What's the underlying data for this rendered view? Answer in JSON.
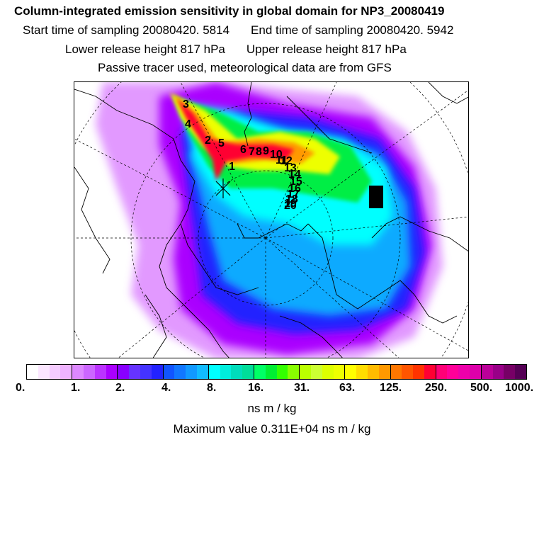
{
  "titles": {
    "main": "Column-integrated emission sensitivity in global domain for NP3_20080419",
    "start": "Start time of sampling 20080420.  5814",
    "end": "End time of sampling 20080420.  5942",
    "lower": "Lower release height  817 hPa",
    "upper": "Upper release height  817 hPa",
    "info": "Passive tracer used, meteorological data are from GFS"
  },
  "colorbar": {
    "ticks": [
      "0.",
      "1.",
      "2.",
      "4.",
      "8.",
      "16.",
      "31.",
      "63.",
      "125.",
      "250.",
      "500.",
      "1000."
    ],
    "unit": "ns m / kg",
    "colors": [
      "#ffffff",
      "#fbe6ff",
      "#f5ccff",
      "#efb3ff",
      "#dd88ff",
      "#cc66ff",
      "#bb33ff",
      "#aa00ff",
      "#8800ff",
      "#6633ff",
      "#4433ff",
      "#2222ff",
      "#1155ff",
      "#1177ff",
      "#1199ff",
      "#11bbff",
      "#00ffff",
      "#00eedd",
      "#00ddbb",
      "#00dd99",
      "#00ff66",
      "#00ee33",
      "#33ff00",
      "#88ff00",
      "#bbff00",
      "#ccff33",
      "#ddff00",
      "#eeff00",
      "#ffff00",
      "#ffdd00",
      "#ffbb00",
      "#ff9900",
      "#ff7700",
      "#ff5500",
      "#ff3300",
      "#ff0033",
      "#ff0077",
      "#ff0099",
      "#ee00aa",
      "#dd00aa",
      "#bb0099",
      "#990088",
      "#770066",
      "#550055"
    ]
  },
  "max_value": "Maximum value  0.311E+04 ns m / kg",
  "trajectory_labels": [
    "3",
    "4",
    "2",
    "5",
    "6",
    "7",
    "8",
    "9",
    "10",
    "11",
    "12",
    "13",
    "14",
    "15",
    "16",
    "17",
    "18",
    "19",
    "20"
  ],
  "map_layers": {
    "plume_colors": {
      "outer": "#dd88ff",
      "purple": "#aa00ff",
      "blue": "#2222ff",
      "light_blue": "#11aaff",
      "cyan": "#00ffff",
      "green": "#00ee44",
      "yellow": "#eeff00",
      "orange": "#ff9900",
      "red": "#ff0033"
    }
  }
}
